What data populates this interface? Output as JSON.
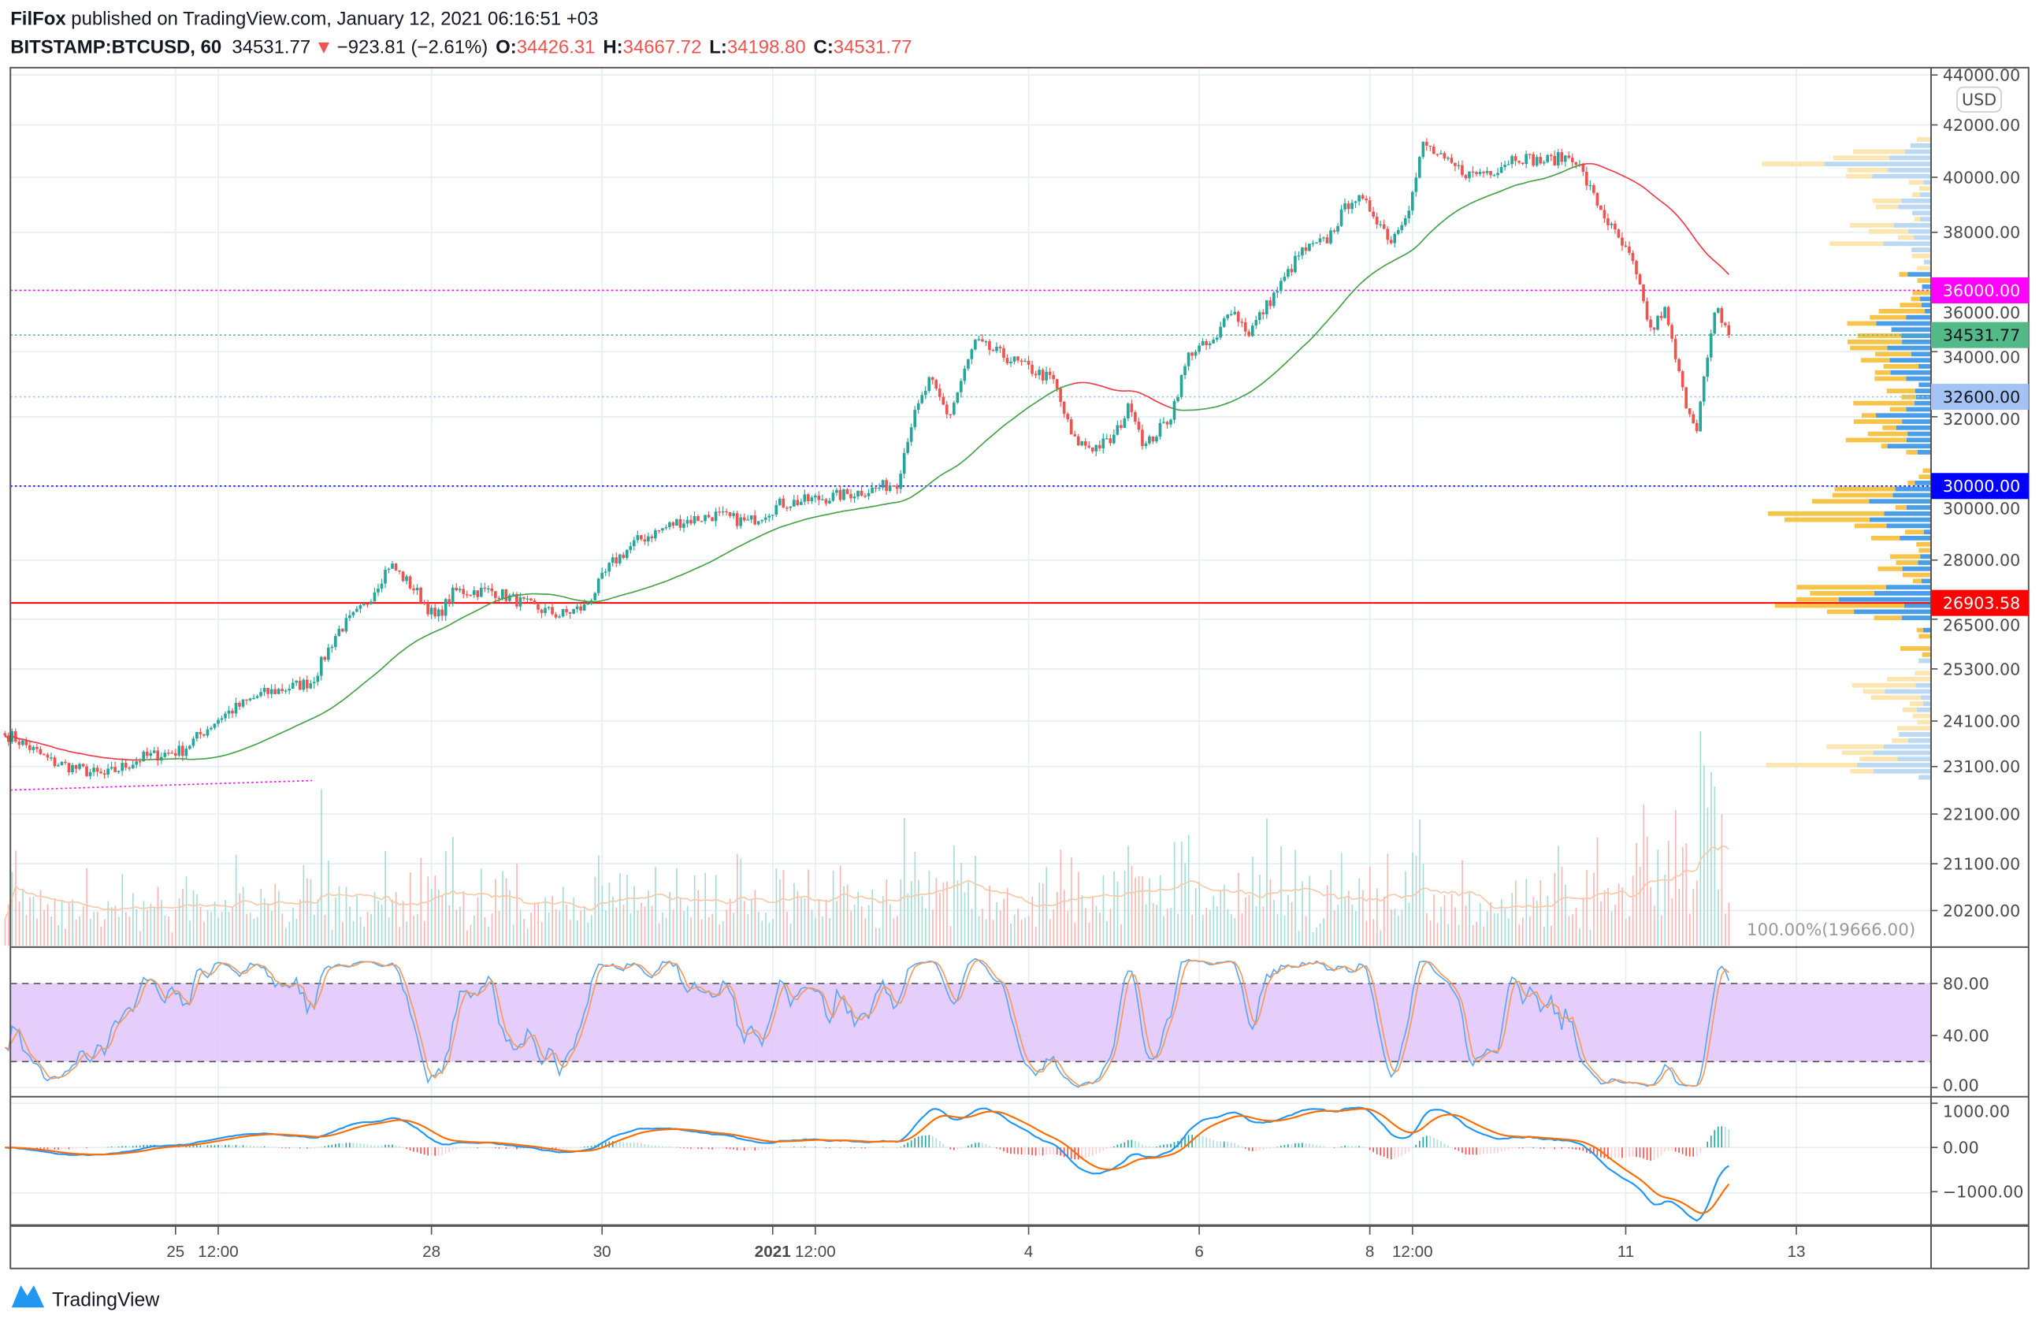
{
  "header": {
    "author": "FilFox",
    "published": " published on TradingView.com, January 12, 2021 06:16:51 +03",
    "symbol": "BITSTAMP:BTCUSD, 60",
    "last": "34531.77",
    "change": "−923.81 (−2.61%)",
    "o_label": "O:",
    "o": "34426.31",
    "h_label": "H:",
    "h": "34667.72",
    "l_label": "L:",
    "l": "34198.80",
    "c_label": "C:",
    "c": "34531.77"
  },
  "currency_button": "USD",
  "volume_scale_label": "100.00%(19666.00)",
  "footer": {
    "brand": "TradingView"
  },
  "colors": {
    "up": "#26a69a",
    "down": "#ef5350",
    "ma": "#43a047",
    "level_36000": "#ff00ff",
    "level_last": "#53b987",
    "level_32600": "#a4c2f4",
    "level_30000": "#0000ff",
    "level_26903": "#ff0000"
  },
  "chart_data": {
    "type": "candlestick",
    "title": "BITSTAMP:BTCUSD, 60",
    "timeframe": "60",
    "scale": "log",
    "ylim": [
      19666,
      44000
    ],
    "key_closes": [
      [
        0.06,
        23780
      ],
      [
        0.55,
        23200
      ],
      [
        1.16,
        22900
      ],
      [
        1.62,
        23300
      ],
      [
        2.08,
        23450
      ],
      [
        2.53,
        24200
      ],
      [
        2.99,
        24700
      ],
      [
        3.6,
        25000
      ],
      [
        3.9,
        26200
      ],
      [
        4.21,
        26800
      ],
      [
        4.51,
        27900
      ],
      [
        4.82,
        27200
      ],
      [
        5.05,
        26500
      ],
      [
        5.27,
        27200
      ],
      [
        5.73,
        27200
      ],
      [
        6.19,
        26800
      ],
      [
        6.5,
        26600
      ],
      [
        6.8,
        26800
      ],
      [
        7.11,
        27900
      ],
      [
        7.41,
        28500
      ],
      [
        7.87,
        29000
      ],
      [
        8.33,
        29200
      ],
      [
        8.71,
        29000
      ],
      [
        9.09,
        29500
      ],
      [
        9.7,
        29700
      ],
      [
        10.16,
        29900
      ],
      [
        10.46,
        30100
      ],
      [
        10.61,
        31700
      ],
      [
        10.84,
        33100
      ],
      [
        11.07,
        32000
      ],
      [
        11.37,
        34300
      ],
      [
        11.68,
        33900
      ],
      [
        11.98,
        33500
      ],
      [
        12.29,
        33100
      ],
      [
        12.52,
        31300
      ],
      [
        12.75,
        31100
      ],
      [
        12.98,
        31300
      ],
      [
        13.2,
        32400
      ],
      [
        13.36,
        31100
      ],
      [
        13.66,
        32000
      ],
      [
        13.89,
        34000
      ],
      [
        14.2,
        34300
      ],
      [
        14.35,
        35500
      ],
      [
        14.58,
        34600
      ],
      [
        14.96,
        36200
      ],
      [
        15.19,
        37300
      ],
      [
        15.49,
        37700
      ],
      [
        15.8,
        39300
      ],
      [
        16.02,
        38800
      ],
      [
        16.25,
        37700
      ],
      [
        16.48,
        39100
      ],
      [
        16.63,
        41300
      ],
      [
        16.86,
        40600
      ],
      [
        17.17,
        40100
      ],
      [
        17.47,
        40300
      ],
      [
        17.7,
        40800
      ],
      [
        18.01,
        40600
      ],
      [
        18.39,
        40800
      ],
      [
        18.62,
        39300
      ],
      [
        18.84,
        38100
      ],
      [
        19.07,
        37000
      ],
      [
        19.3,
        34600
      ],
      [
        19.45,
        35400
      ],
      [
        19.68,
        32600
      ],
      [
        19.83,
        31700
      ],
      [
        20.06,
        35400
      ],
      [
        20.22,
        34531.77
      ]
    ],
    "price_ticks": [
      "44000.00",
      "42000.00",
      "40000.00",
      "38000.00",
      "36000.00",
      "34000.00",
      "32000.00",
      "30000.00",
      "28000.00",
      "26500.00",
      "25300.00",
      "24100.00",
      "23100.00",
      "22100.00",
      "21100.00",
      "20200.00"
    ],
    "price_tick_values": [
      44000,
      42000,
      40000,
      38000,
      36000,
      34000,
      32000,
      30000,
      28000,
      26500,
      25300,
      24100,
      23100,
      22100,
      21100,
      20200
    ],
    "time_ticks": [
      "25",
      "12:00",
      "28",
      "30",
      "2021",
      "12:00",
      "4",
      "6",
      "8",
      "12:00",
      "11",
      "13"
    ],
    "time_tick_days": [
      2,
      2.5,
      5,
      7,
      9,
      9.5,
      12,
      14,
      16,
      16.5,
      19,
      21
    ],
    "horizontal_levels": [
      {
        "price": 36000,
        "label": "36000.00",
        "style": "dotted",
        "color": "#ff00ff",
        "text": "#ffffff"
      },
      {
        "price": 34531.77,
        "label": "34531.77",
        "style": "dotted",
        "color": "#53b987",
        "text": "#131722"
      },
      {
        "price": 32600,
        "label": "32600.00",
        "style": "dotted",
        "color": "#a4c2f4",
        "text": "#131722"
      },
      {
        "price": 30000,
        "label": "30000.00",
        "style": "dotted",
        "color": "#0000ff",
        "text": "#ffffff"
      },
      {
        "price": 26903.58,
        "label": "26903.58",
        "style": "solid",
        "color": "#ff0000",
        "text": "#ffffff"
      }
    ],
    "trend_line": {
      "from": [
        0,
        22600
      ],
      "to": [
        3.6,
        22800
      ],
      "color": "#ff00ff"
    },
    "stoch": {
      "ticks": [
        "80.00",
        "40.00",
        "0.00"
      ],
      "tick_values": [
        80,
        40,
        0
      ],
      "band": [
        20,
        80
      ]
    },
    "macd": {
      "ticks": [
        "1000.00",
        "0.00",
        "−1000.00"
      ],
      "tick_values": [
        1000,
        0,
        -1000
      ]
    }
  }
}
